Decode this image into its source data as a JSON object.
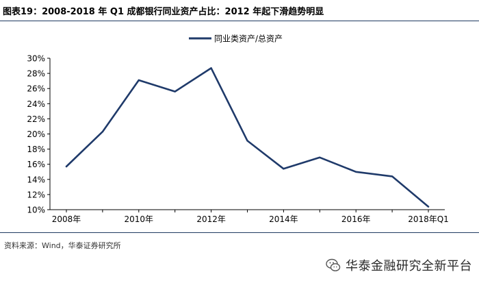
{
  "header": {
    "title": "图表19：2008-2018 年 Q1 成都银行同业资产占比：2012 年起下滑趋势明显"
  },
  "chart_data": {
    "type": "line",
    "title": "",
    "xlabel": "",
    "ylabel": "",
    "categories": [
      "2008年",
      "2009年",
      "2010年",
      "2011年",
      "2012年",
      "2013年",
      "2014年",
      "2015年",
      "2016年",
      "2017年",
      "2018年Q1"
    ],
    "x_tick_labels": [
      "2008年",
      "2010年",
      "2012年",
      "2014年",
      "2016年",
      "2018年Q1"
    ],
    "y_tick_labels": [
      "10%",
      "12%",
      "14%",
      "16%",
      "18%",
      "20%",
      "22%",
      "24%",
      "26%",
      "28%",
      "30%"
    ],
    "ylim": [
      10,
      30
    ],
    "y_unit": "%",
    "grid": false,
    "legend_position": "top-center",
    "series": [
      {
        "name": "同业类资产/总资产",
        "color": "#1f3a6a",
        "values": [
          15.7,
          20.3,
          27.1,
          25.6,
          28.7,
          19.1,
          15.4,
          16.9,
          15.0,
          14.4,
          10.4
        ]
      }
    ]
  },
  "footer": {
    "source": "资料来源：Wind，华泰证券研究所",
    "watermark": "华泰金融研究全新平台"
  }
}
